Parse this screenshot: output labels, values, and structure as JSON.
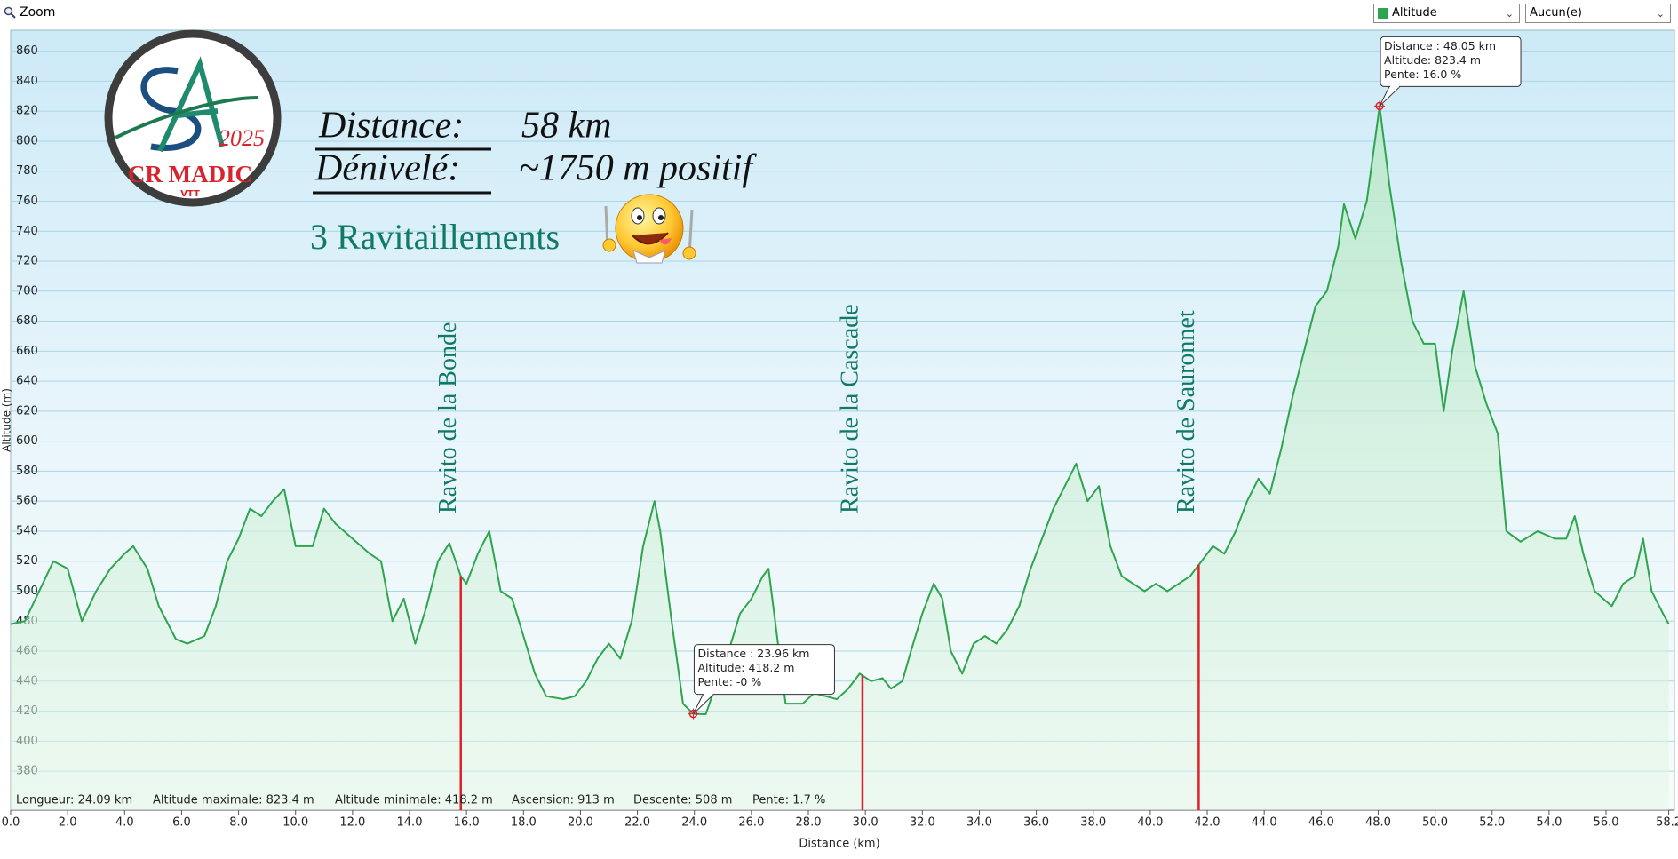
{
  "toolbar": {
    "zoom": "Zoom",
    "selects": [
      "Altitude",
      "Aucun(e)"
    ]
  },
  "chart_data": {
    "type": "line",
    "x_label": "Distance   (km)",
    "y_label": "Altitude (m)",
    "x": [
      0,
      0.5,
      1.0,
      1.5,
      2.0,
      2.5,
      3.0,
      3.5,
      4.0,
      4.3,
      4.8,
      5.2,
      5.8,
      6.2,
      6.8,
      7.2,
      7.6,
      8.0,
      8.4,
      8.8,
      9.2,
      9.6,
      10.0,
      10.6,
      11.0,
      11.4,
      12.0,
      12.6,
      13.0,
      13.4,
      13.8,
      14.2,
      14.6,
      15.0,
      15.4,
      15.8,
      16.0,
      16.4,
      16.8,
      17.2,
      17.6,
      18.0,
      18.4,
      18.8,
      19.4,
      19.8,
      20.2,
      20.6,
      21.0,
      21.4,
      21.8,
      22.2,
      22.6,
      22.8,
      23.2,
      23.6,
      23.96,
      24.4,
      24.8,
      25.2,
      25.6,
      26.0,
      26.4,
      26.6,
      26.9,
      27.2,
      27.8,
      28.2,
      28.6,
      29.0,
      29.4,
      29.8,
      30.2,
      30.6,
      30.9,
      31.3,
      31.6,
      32.0,
      32.4,
      32.7,
      33.0,
      33.4,
      33.8,
      34.2,
      34.6,
      35.0,
      35.4,
      35.8,
      36.2,
      36.6,
      37.0,
      37.4,
      37.8,
      38.2,
      38.6,
      39.0,
      39.4,
      39.8,
      40.2,
      40.6,
      41.0,
      41.4,
      41.8,
      42.2,
      42.6,
      43.0,
      43.4,
      43.8,
      44.2,
      44.6,
      45.0,
      45.4,
      45.8,
      46.2,
      46.6,
      46.8,
      47.2,
      47.6,
      48.05,
      48.4,
      48.8,
      49.2,
      49.6,
      50.0,
      50.3,
      50.6,
      51.0,
      51.4,
      51.8,
      52.2,
      52.5,
      53.0,
      53.6,
      54.2,
      54.6,
      54.9,
      55.2,
      55.6,
      56.2,
      56.6,
      57.0,
      57.3,
      57.6,
      58.0,
      58.2
    ],
    "series": [
      {
        "name": "Altitude",
        "color": "#2ea44f",
        "values": [
          478,
          480,
          500,
          520,
          515,
          480,
          500,
          515,
          525,
          530,
          515,
          490,
          468,
          465,
          470,
          490,
          520,
          535,
          555,
          550,
          560,
          568,
          530,
          530,
          555,
          545,
          535,
          525,
          520,
          480,
          495,
          465,
          490,
          520,
          532,
          510,
          505,
          525,
          540,
          500,
          495,
          470,
          445,
          430,
          428,
          430,
          440,
          455,
          465,
          455,
          480,
          530,
          560,
          540,
          480,
          425,
          418.2,
          418,
          440,
          460,
          485,
          495,
          510,
          515,
          470,
          425,
          425,
          432,
          430,
          428,
          435,
          445,
          440,
          442,
          435,
          440,
          460,
          485,
          505,
          495,
          460,
          445,
          465,
          470,
          465,
          475,
          490,
          515,
          535,
          555,
          570,
          585,
          560,
          570,
          530,
          510,
          505,
          500,
          505,
          500,
          505,
          510,
          520,
          530,
          525,
          540,
          560,
          575,
          565,
          595,
          630,
          660,
          690,
          700,
          730,
          758,
          735,
          760,
          823.4,
          770,
          720,
          680,
          665,
          665,
          620,
          660,
          700,
          650,
          625,
          605,
          540,
          533,
          540,
          535,
          535,
          550,
          525,
          500,
          490,
          505,
          510,
          535,
          500,
          485,
          478
        ]
      }
    ],
    "xlim": [
      0,
      58.4
    ],
    "ylim": [
      354,
      874
    ],
    "xticks": [
      {
        "value": 0,
        "label": "0.0"
      },
      {
        "value": 2,
        "label": "2.0"
      },
      {
        "value": 4,
        "label": "4.0"
      },
      {
        "value": 6,
        "label": "6.0"
      },
      {
        "value": 8,
        "label": "8.0"
      },
      {
        "value": 10,
        "label": "10.0"
      },
      {
        "value": 12,
        "label": "12.0"
      },
      {
        "value": 14,
        "label": "14.0"
      },
      {
        "value": 16,
        "label": "16.0"
      },
      {
        "value": 18,
        "label": "18.0"
      },
      {
        "value": 20,
        "label": "20.0"
      },
      {
        "value": 22,
        "label": "22.0"
      },
      {
        "value": 24,
        "label": "24.0"
      },
      {
        "value": 26,
        "label": "26.0"
      },
      {
        "value": 28,
        "label": "28.0"
      },
      {
        "value": 30,
        "label": "30.0"
      },
      {
        "value": 32,
        "label": "32.0"
      },
      {
        "value": 34,
        "label": "34.0"
      },
      {
        "value": 36,
        "label": "36.0"
      },
      {
        "value": 38,
        "label": "38.0"
      },
      {
        "value": 40,
        "label": "40.0"
      },
      {
        "value": 42,
        "label": "42.0"
      },
      {
        "value": 44,
        "label": "44.0"
      },
      {
        "value": 46,
        "label": "46.0"
      },
      {
        "value": 48,
        "label": "48.0"
      },
      {
        "value": 50,
        "label": "50.0"
      },
      {
        "value": 52,
        "label": "52.0"
      },
      {
        "value": 54,
        "label": "54.0"
      },
      {
        "value": 56,
        "label": "56.0"
      },
      {
        "value": 58.2,
        "label": "58.2"
      }
    ],
    "yticks": [
      380,
      400,
      420,
      440,
      460,
      480,
      500,
      520,
      540,
      560,
      580,
      600,
      620,
      640,
      660,
      680,
      700,
      720,
      740,
      760,
      780,
      800,
      820,
      840,
      860
    ],
    "grid": true,
    "markers": [
      {
        "x": 15.8,
        "label": "Ravito  de la Bonde"
      },
      {
        "x": 29.9,
        "label": "Ravito  de la Cascade"
      },
      {
        "x": 41.7,
        "label": "Ravito  de Sauronnet"
      }
    ],
    "tooltips": [
      {
        "x": 23.96,
        "y": 418.2,
        "lines": [
          "Distance  : 23.96 km",
          "Altitude: 418.2 m",
          "Pente: -0 %"
        ]
      },
      {
        "x": 48.05,
        "y": 823.4,
        "lines": [
          "Distance  : 48.05 km",
          "Altitude: 823.4 m",
          "Pente: 16.0 %"
        ]
      }
    ],
    "stats": [
      "Longueur: 24.09 km",
      "Altitude maximale: 823.4 m",
      "Altitude minimale: 418.2 m",
      "Ascension: 913 m",
      "Descente: 508 m",
      "Pente: 1.7 %"
    ],
    "overlay": {
      "distance_label": "Distance:",
      "distance_value": "58 km",
      "denivele_label": "Dénivelé:",
      "denivele_value": "~1750 m positif",
      "ravitaillements": "3 Ravitaillements"
    },
    "logo": {
      "club": "CR MADIC",
      "sub": "VTT",
      "year": "2025"
    }
  }
}
